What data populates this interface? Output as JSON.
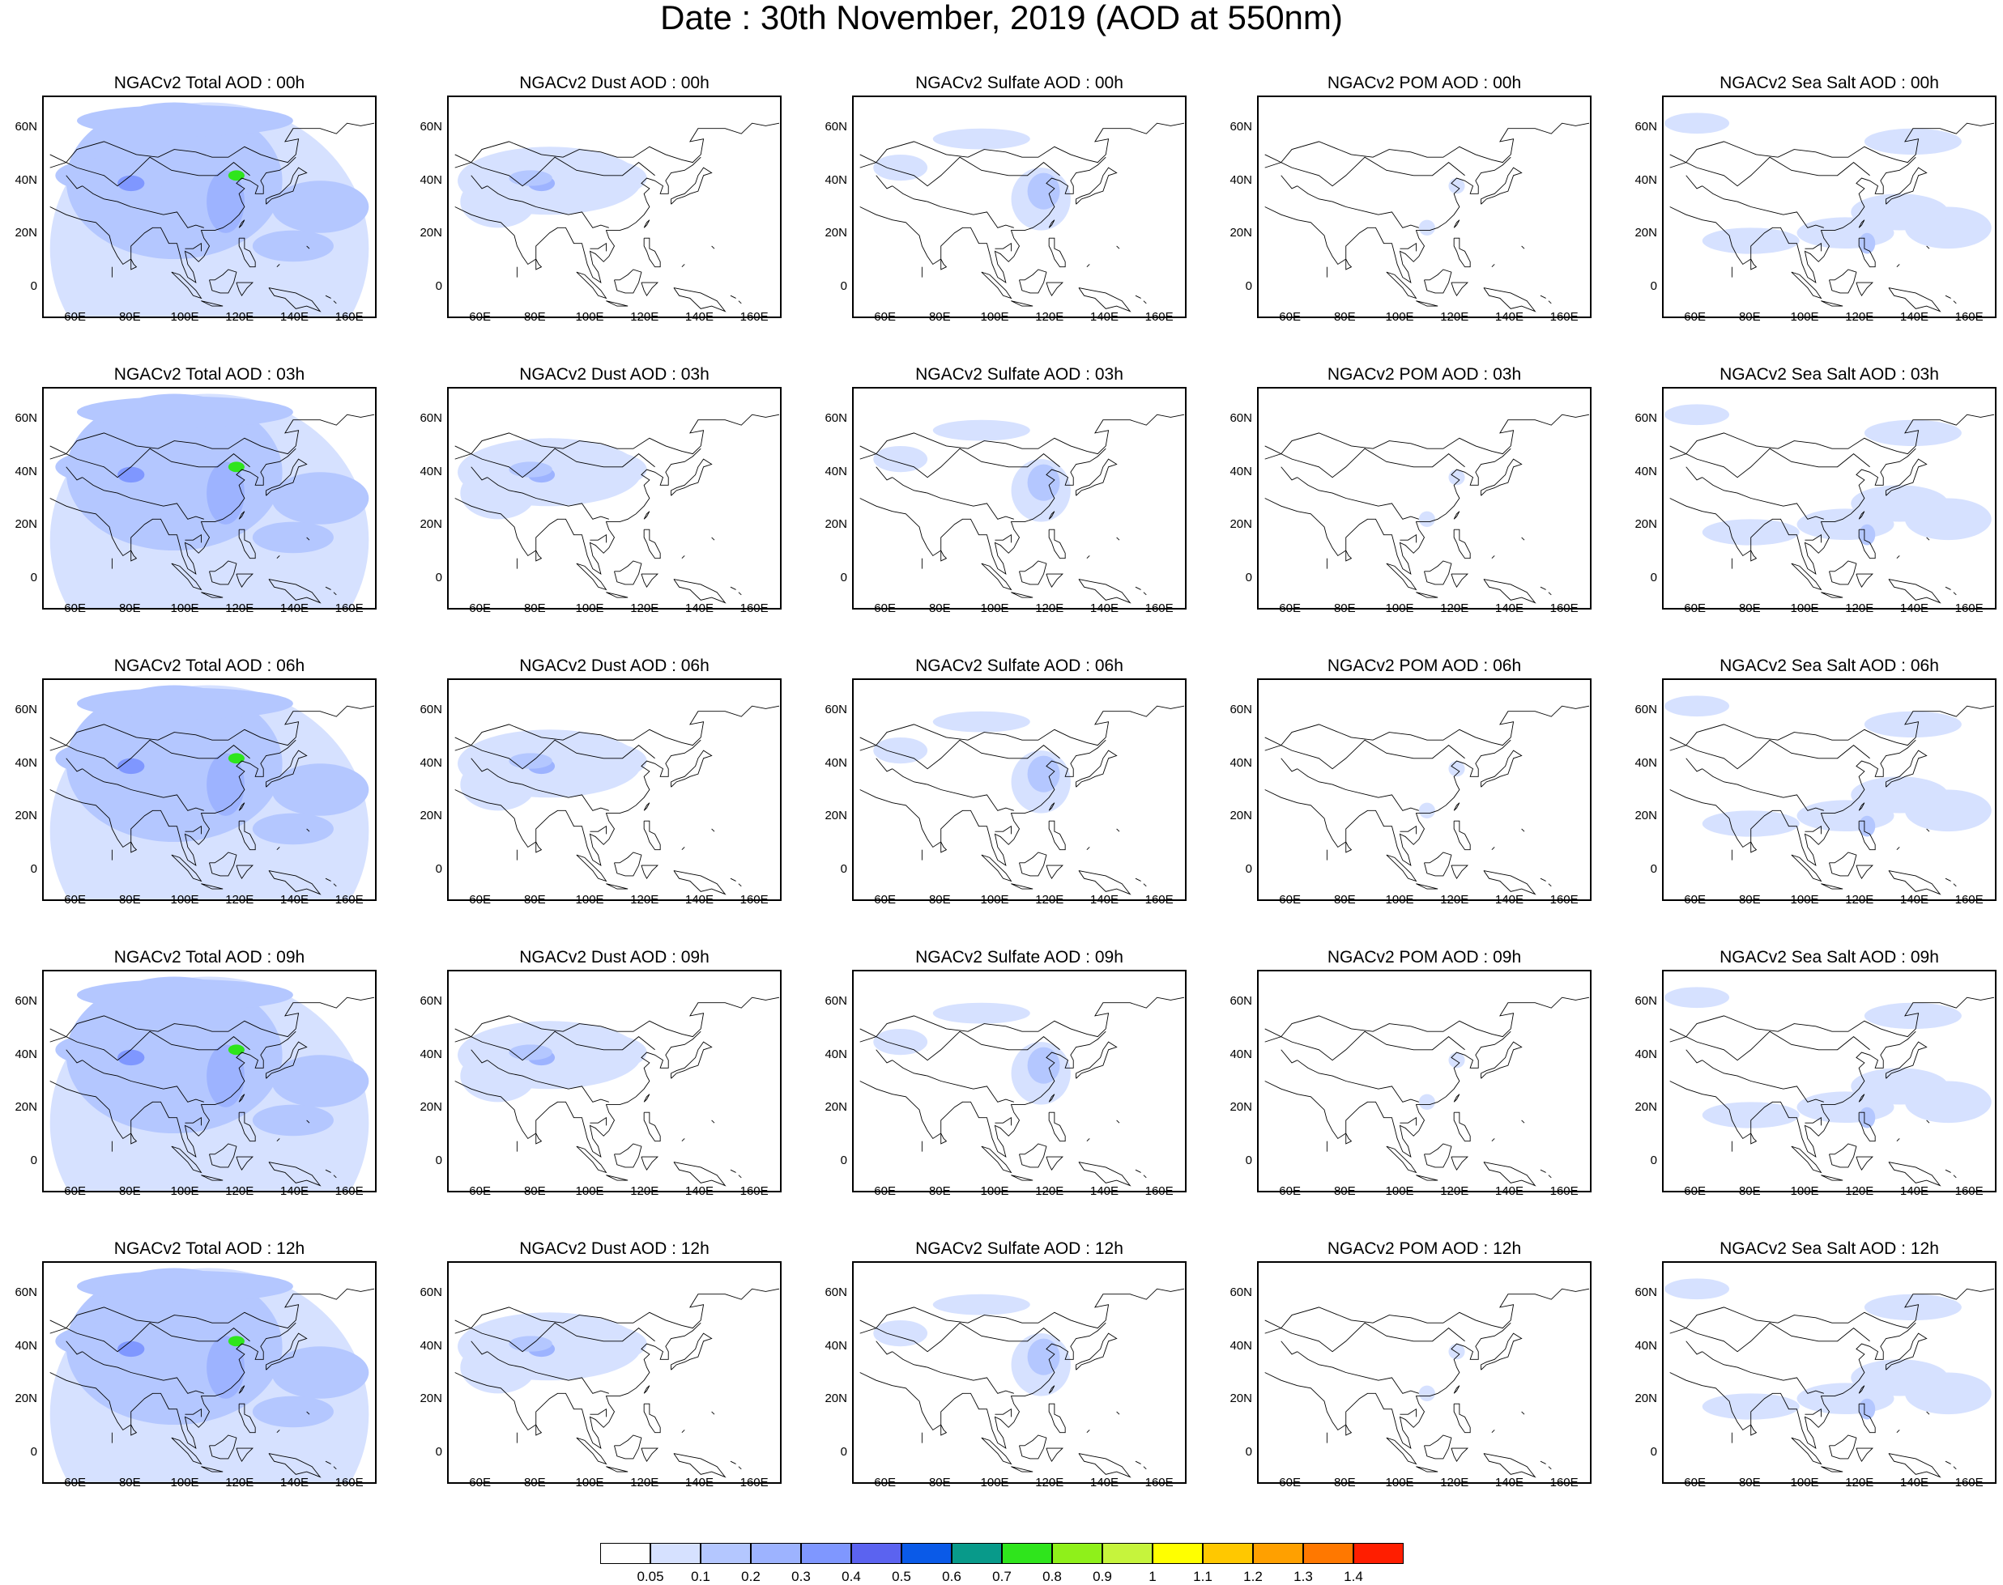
{
  "header": {
    "title": "Date : 30th November, 2019 (AOD at 550nm)"
  },
  "map": {
    "lat_labels": [
      "60N",
      "40N",
      "20N",
      "0"
    ],
    "lon_labels": [
      "60E",
      "80E",
      "100E",
      "120E",
      "140E",
      "160E"
    ]
  },
  "panels": [
    [
      {
        "title": "NGACv2 Total AOD : 00h",
        "species": "total"
      },
      {
        "title": "NGACv2 Dust AOD : 00h",
        "species": "dust"
      },
      {
        "title": "NGACv2 Sulfate AOD : 00h",
        "species": "sulfate"
      },
      {
        "title": "NGACv2 POM AOD : 00h",
        "species": "pom"
      },
      {
        "title": "NGACv2 Sea Salt AOD : 00h",
        "species": "seasalt"
      }
    ],
    [
      {
        "title": "NGACv2 Total AOD : 03h",
        "species": "total"
      },
      {
        "title": "NGACv2 Dust AOD : 03h",
        "species": "dust"
      },
      {
        "title": "NGACv2 Sulfate AOD : 03h",
        "species": "sulfate"
      },
      {
        "title": "NGACv2 POM AOD : 03h",
        "species": "pom"
      },
      {
        "title": "NGACv2 Sea Salt AOD : 03h",
        "species": "seasalt"
      }
    ],
    [
      {
        "title": "NGACv2 Total AOD : 06h",
        "species": "total"
      },
      {
        "title": "NGACv2 Dust AOD : 06h",
        "species": "dust"
      },
      {
        "title": "NGACv2 Sulfate AOD : 06h",
        "species": "sulfate"
      },
      {
        "title": "NGACv2 POM AOD : 06h",
        "species": "pom"
      },
      {
        "title": "NGACv2 Sea Salt AOD : 06h",
        "species": "seasalt"
      }
    ],
    [
      {
        "title": "NGACv2 Total AOD : 09h",
        "species": "total"
      },
      {
        "title": "NGACv2 Dust AOD : 09h",
        "species": "dust"
      },
      {
        "title": "NGACv2 Sulfate AOD : 09h",
        "species": "sulfate"
      },
      {
        "title": "NGACv2 POM AOD : 09h",
        "species": "pom"
      },
      {
        "title": "NGACv2 Sea Salt  AOD : 09h",
        "species": "seasalt"
      }
    ],
    [
      {
        "title": "NGACv2 Total AOD  : 12h",
        "species": "total"
      },
      {
        "title": "NGACv2 Dust AOD : 12h",
        "species": "dust"
      },
      {
        "title": "NGACv2 Sulfate AOD : 12h",
        "species": "sulfate"
      },
      {
        "title": "NGACv2 POM  AOD : 12h",
        "species": "pom"
      },
      {
        "title": "NGACv2 Sea Salt  AOD : 12h",
        "species": "seasalt"
      }
    ]
  ],
  "colorbar": {
    "labels": [
      "0.05",
      "0.1",
      "0.2",
      "0.3",
      "0.4",
      "0.5",
      "0.6",
      "0.7",
      "0.8",
      "0.9",
      "1",
      "1.1",
      "1.2",
      "1.3",
      "1.4"
    ],
    "colors": [
      "#ffffff",
      "#d6e1ff",
      "#b4c7ff",
      "#9db3ff",
      "#7f97ff",
      "#5b63f0",
      "#0a5ae8",
      "#089a8a",
      "#2fe51c",
      "#8ff01a",
      "#c6f43c",
      "#ffff00",
      "#ffc800",
      "#ffa000",
      "#ff7800",
      "#ff1e00"
    ]
  }
}
